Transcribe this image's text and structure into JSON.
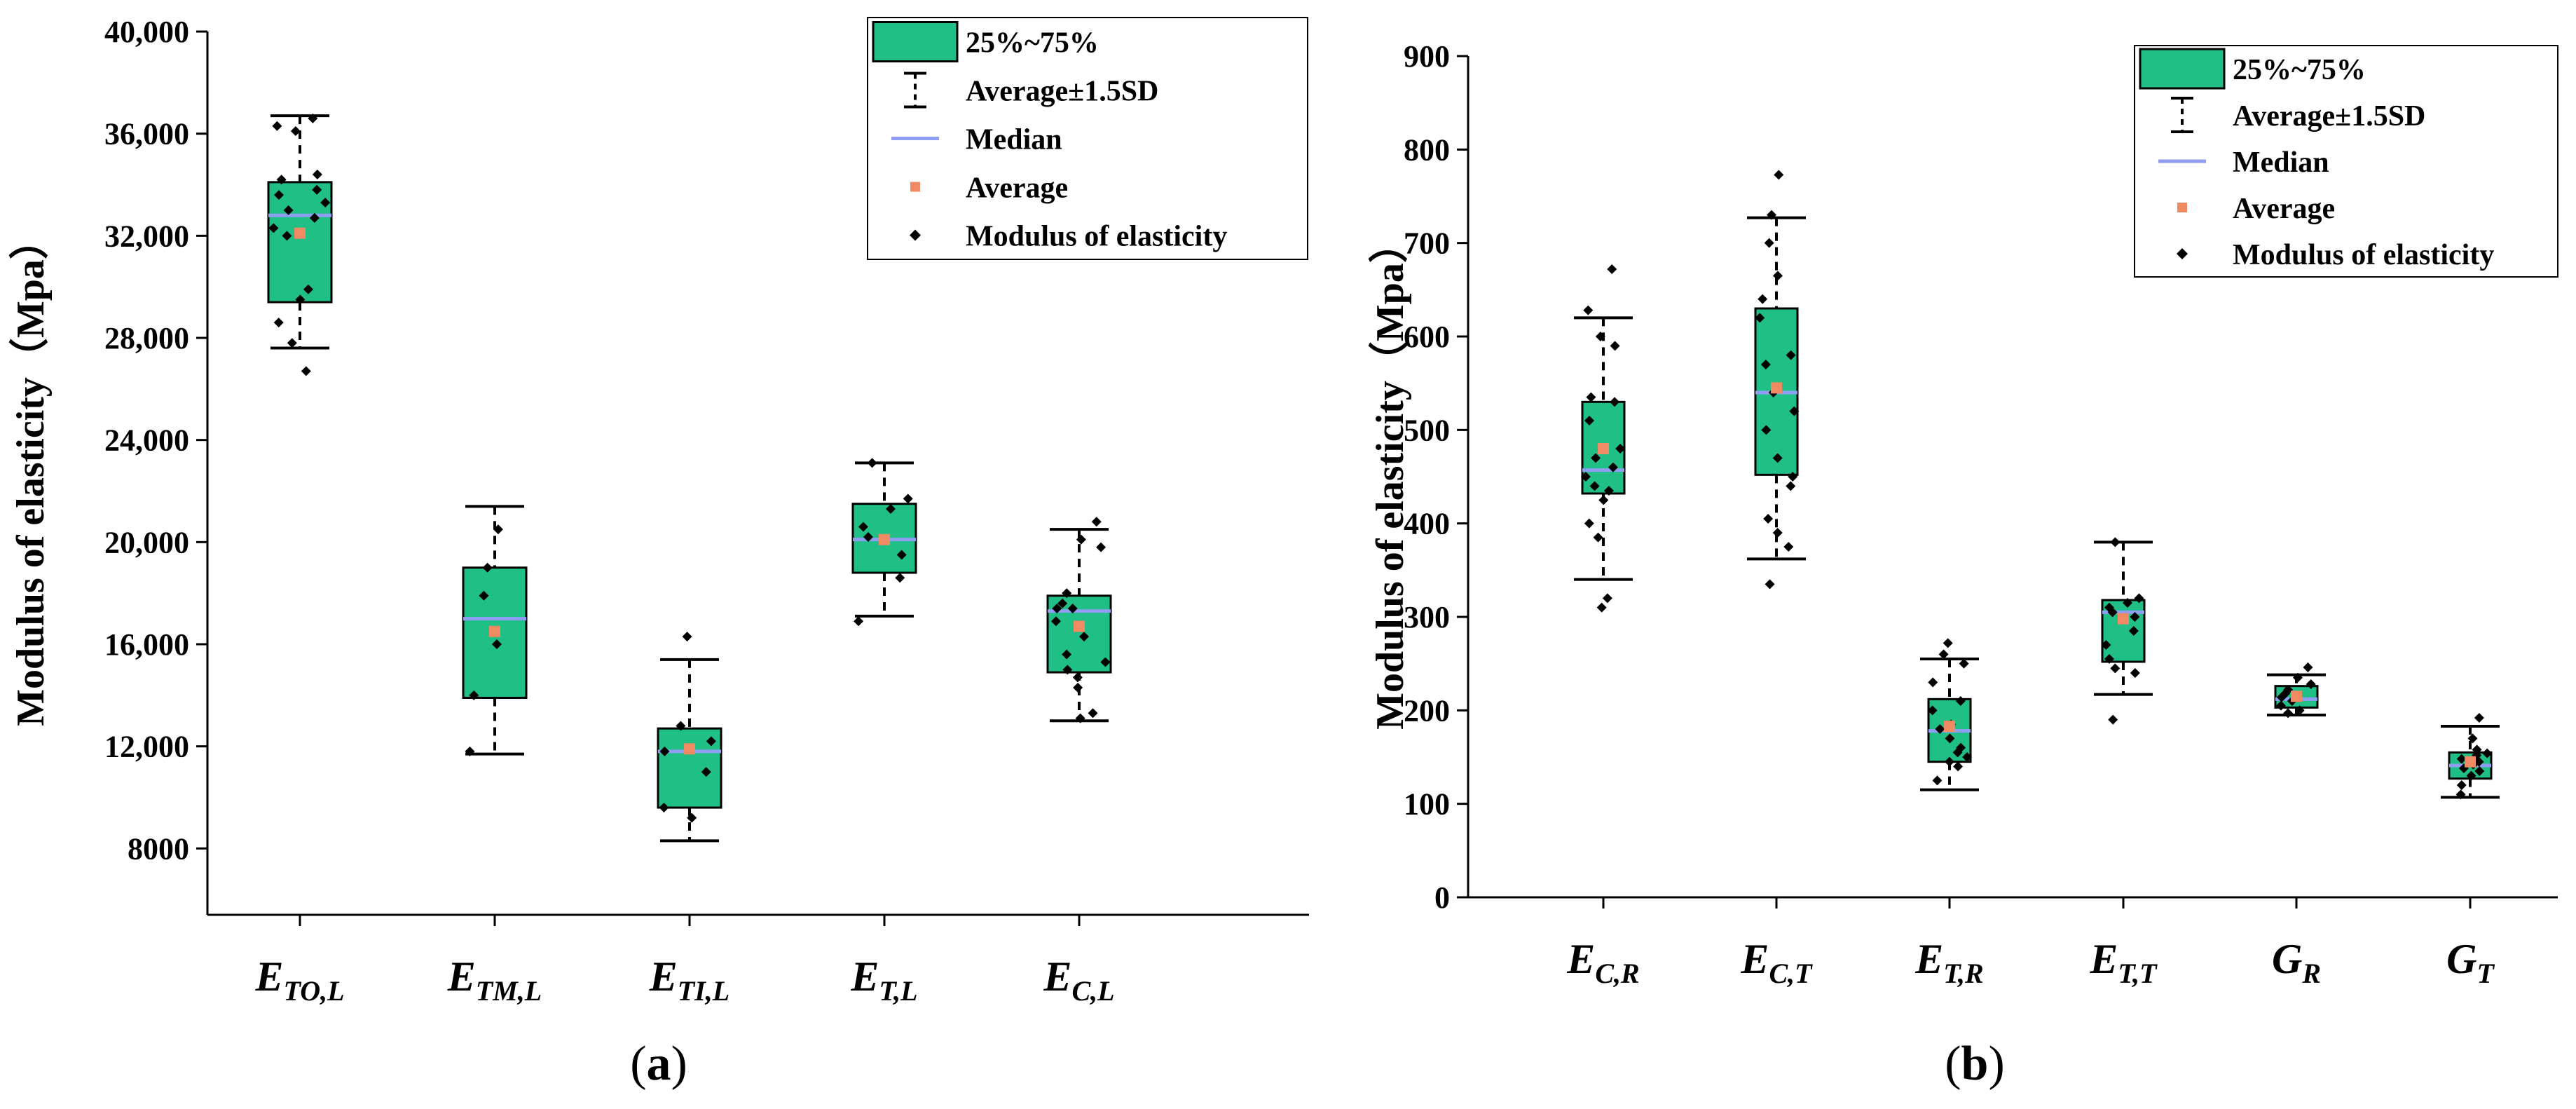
{
  "colors": {
    "box": "#1fbf86",
    "median": "#8f9ef2",
    "average": "#f08a63",
    "point": "#000000",
    "axis": "#000000"
  },
  "chart_data": [
    {
      "panel": "(a)",
      "panel_letter": "a",
      "type": "box",
      "ylabel": "Modulus of elasticity（Mpa）",
      "ylim": [
        5400,
        40000
      ],
      "yticks": [
        {
          "value": 8000,
          "label": "8000"
        },
        {
          "value": 12000,
          "label": "12,000"
        },
        {
          "value": 16000,
          "label": "16,000"
        },
        {
          "value": 20000,
          "label": "20,000"
        },
        {
          "value": 24000,
          "label": "24,000"
        },
        {
          "value": 28000,
          "label": "28,000"
        },
        {
          "value": 32000,
          "label": "32,000"
        },
        {
          "value": 36000,
          "label": "36,000"
        },
        {
          "value": 40000,
          "label": "40,000"
        }
      ],
      "legend": {
        "box_label": "25%~75%",
        "whisker_label": "Average±1.5SD",
        "median_label": "Median",
        "average_label": "Average",
        "point_label": "Modulus of elasticity"
      },
      "categories": [
        {
          "main": "E",
          "sub": "TO,L",
          "q1": 29400,
          "q3": 34100,
          "median": 32800,
          "mean": 32100,
          "wlow": 27600,
          "whigh": 36700,
          "points": [
            36600,
            36300,
            36100,
            34400,
            34200,
            33800,
            33600,
            33300,
            33000,
            32700,
            32300,
            32000,
            29900,
            29500,
            28600,
            27800,
            26700
          ]
        },
        {
          "main": "E",
          "sub": "TM,L",
          "q1": 13900,
          "q3": 19000,
          "median": 17000,
          "mean": 16500,
          "wlow": 11700,
          "whigh": 21400,
          "points": [
            20500,
            19000,
            17900,
            16000,
            14000,
            11800
          ]
        },
        {
          "main": "E",
          "sub": "TI,L",
          "q1": 9600,
          "q3": 12700,
          "median": 11800,
          "mean": 11900,
          "wlow": 8300,
          "whigh": 15400,
          "points": [
            16300,
            12800,
            12200,
            11800,
            11000,
            9600,
            9200
          ]
        },
        {
          "main": "E",
          "sub": "T,L",
          "q1": 18800,
          "q3": 21500,
          "median": 20100,
          "mean": 20100,
          "wlow": 17100,
          "whigh": 23100,
          "points": [
            23100,
            21700,
            21300,
            20600,
            20200,
            19500,
            18600,
            16900
          ]
        },
        {
          "main": "E",
          "sub": "C,L",
          "q1": 14900,
          "q3": 17900,
          "median": 17300,
          "mean": 16700,
          "wlow": 13000,
          "whigh": 20500,
          "points": [
            20800,
            20100,
            19800,
            18000,
            17600,
            17400,
            17400,
            16900,
            16300,
            15600,
            15300,
            15000,
            14700,
            14300,
            13300,
            13100
          ]
        }
      ]
    },
    {
      "panel": "(b)",
      "panel_letter": "b",
      "type": "box",
      "ylabel": "Modulus of elasticity（Mpa）",
      "ylim": [
        0,
        900
      ],
      "yticks": [
        {
          "value": 0,
          "label": "0"
        },
        {
          "value": 100,
          "label": "100"
        },
        {
          "value": 200,
          "label": "200"
        },
        {
          "value": 300,
          "label": "300"
        },
        {
          "value": 400,
          "label": "400"
        },
        {
          "value": 500,
          "label": "500"
        },
        {
          "value": 600,
          "label": "600"
        },
        {
          "value": 700,
          "label": "700"
        },
        {
          "value": 800,
          "label": "800"
        },
        {
          "value": 900,
          "label": "900"
        }
      ],
      "legend": {
        "box_label": "25%~75%",
        "whisker_label": "Average±1.5SD",
        "median_label": "Median",
        "average_label": "Average",
        "point_label": "Modulus of elasticity"
      },
      "categories": [
        {
          "main": "E",
          "sub": "C,R",
          "q1": 432,
          "q3": 530,
          "median": 457,
          "mean": 480,
          "wlow": 340,
          "whigh": 620,
          "points": [
            672,
            628,
            600,
            590,
            535,
            530,
            510,
            480,
            470,
            460,
            450,
            440,
            435,
            425,
            400,
            385,
            320,
            310
          ]
        },
        {
          "main": "E",
          "sub": "C,T",
          "q1": 452,
          "q3": 630,
          "median": 540,
          "mean": 545,
          "wlow": 362,
          "whigh": 727,
          "points": [
            773,
            730,
            700,
            665,
            640,
            620,
            580,
            570,
            540,
            520,
            500,
            470,
            450,
            440,
            405,
            390,
            375,
            335
          ]
        },
        {
          "main": "E",
          "sub": "T,R",
          "q1": 145,
          "q3": 212,
          "median": 178,
          "mean": 183,
          "wlow": 115,
          "whigh": 255,
          "points": [
            272,
            260,
            250,
            230,
            210,
            200,
            185,
            180,
            170,
            160,
            155,
            150,
            145,
            140,
            125
          ]
        },
        {
          "main": "E",
          "sub": "T,T",
          "q1": 252,
          "q3": 318,
          "median": 305,
          "mean": 298,
          "wlow": 217,
          "whigh": 380,
          "points": [
            380,
            320,
            315,
            310,
            305,
            300,
            285,
            270,
            255,
            245,
            240,
            190
          ]
        },
        {
          "main": "G",
          "sub": "R",
          "q1": 203,
          "q3": 226,
          "median": 212,
          "mean": 215,
          "wlow": 195,
          "whigh": 238,
          "points": [
            246,
            235,
            228,
            222,
            218,
            214,
            210,
            205,
            200,
            197
          ]
        },
        {
          "main": "G",
          "sub": "T",
          "q1": 127,
          "q3": 155,
          "median": 141,
          "mean": 145,
          "wlow": 107,
          "whigh": 183,
          "points": [
            192,
            170,
            158,
            154,
            152,
            148,
            145,
            142,
            138,
            135,
            130,
            120,
            110
          ]
        }
      ]
    }
  ]
}
